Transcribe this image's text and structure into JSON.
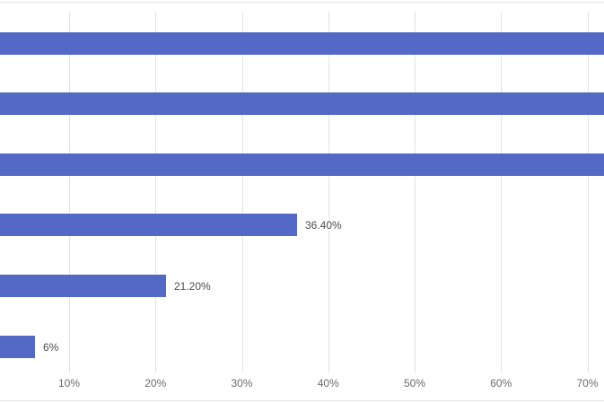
{
  "chart_data": {
    "type": "bar",
    "orientation": "horizontal",
    "title": "",
    "xlabel": "",
    "ylabel": "",
    "grid": true,
    "legend": false,
    "x_axis": {
      "tick_labels": [
        "10%",
        "20%",
        "30%",
        "40%",
        "50%",
        "60%",
        "70%"
      ],
      "tick_values": [
        10,
        20,
        30,
        40,
        50,
        60,
        70
      ],
      "unit": "percent"
    },
    "bars": [
      {
        "value": null,
        "value_label": "",
        "clipped_right": true
      },
      {
        "value": null,
        "value_label": "",
        "clipped_right": true
      },
      {
        "value": null,
        "value_label": "",
        "clipped_right": true
      },
      {
        "value": 36.4,
        "value_label": "36.40%",
        "clipped_right": false
      },
      {
        "value": 21.2,
        "value_label": "21.20%",
        "clipped_right": false
      },
      {
        "value": 6,
        "value_label": "6%",
        "clipped_right": false
      }
    ],
    "colors": {
      "bar": "#5469c6",
      "gridline": "#e2e2e2",
      "tick_label": "#6b6b6b",
      "data_label": "#4d4d4d",
      "border_line": "#e4e4e4"
    }
  }
}
